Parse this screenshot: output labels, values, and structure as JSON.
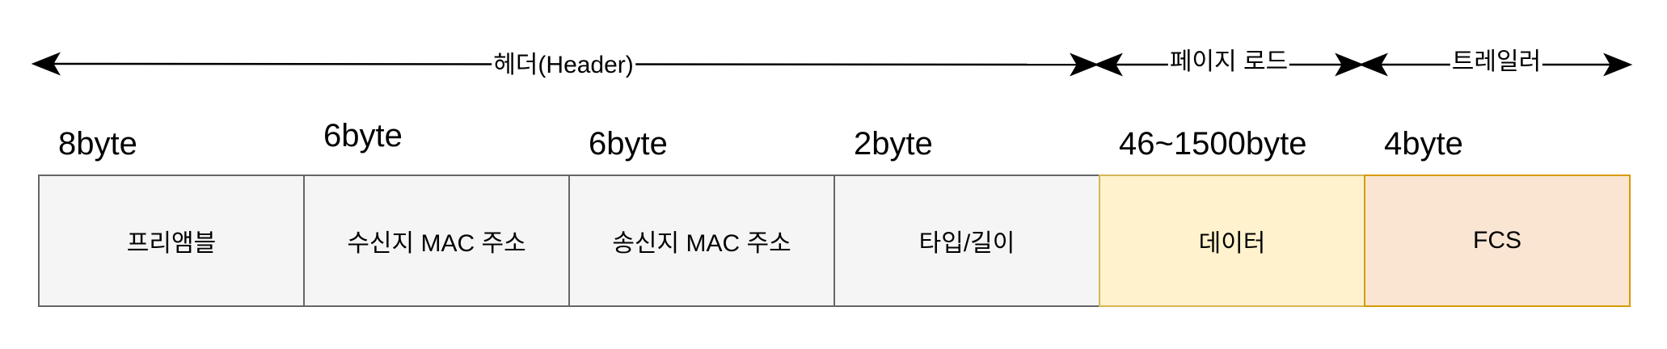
{
  "sections": {
    "header": "헤더(Header)",
    "payload": "페이지 로드",
    "trailer": "트레일러"
  },
  "fields": [
    {
      "size": "8byte",
      "name": "프리앰블"
    },
    {
      "size": "6byte",
      "name": "수신지 MAC 주소"
    },
    {
      "size": "6byte",
      "name": "송신지 MAC 주소"
    },
    {
      "size": "2byte",
      "name": "타입/길이"
    },
    {
      "size": "46~1500byte",
      "name": "데이터"
    },
    {
      "size": "4byte",
      "name": "FCS"
    }
  ],
  "colors": {
    "header_fill": "#f5f5f5",
    "header_stroke": "#666666",
    "data_fill": "#fff2cc",
    "data_stroke": "#d6b656",
    "fcs_fill": "#fae5d3",
    "fcs_stroke": "#d79b00"
  }
}
